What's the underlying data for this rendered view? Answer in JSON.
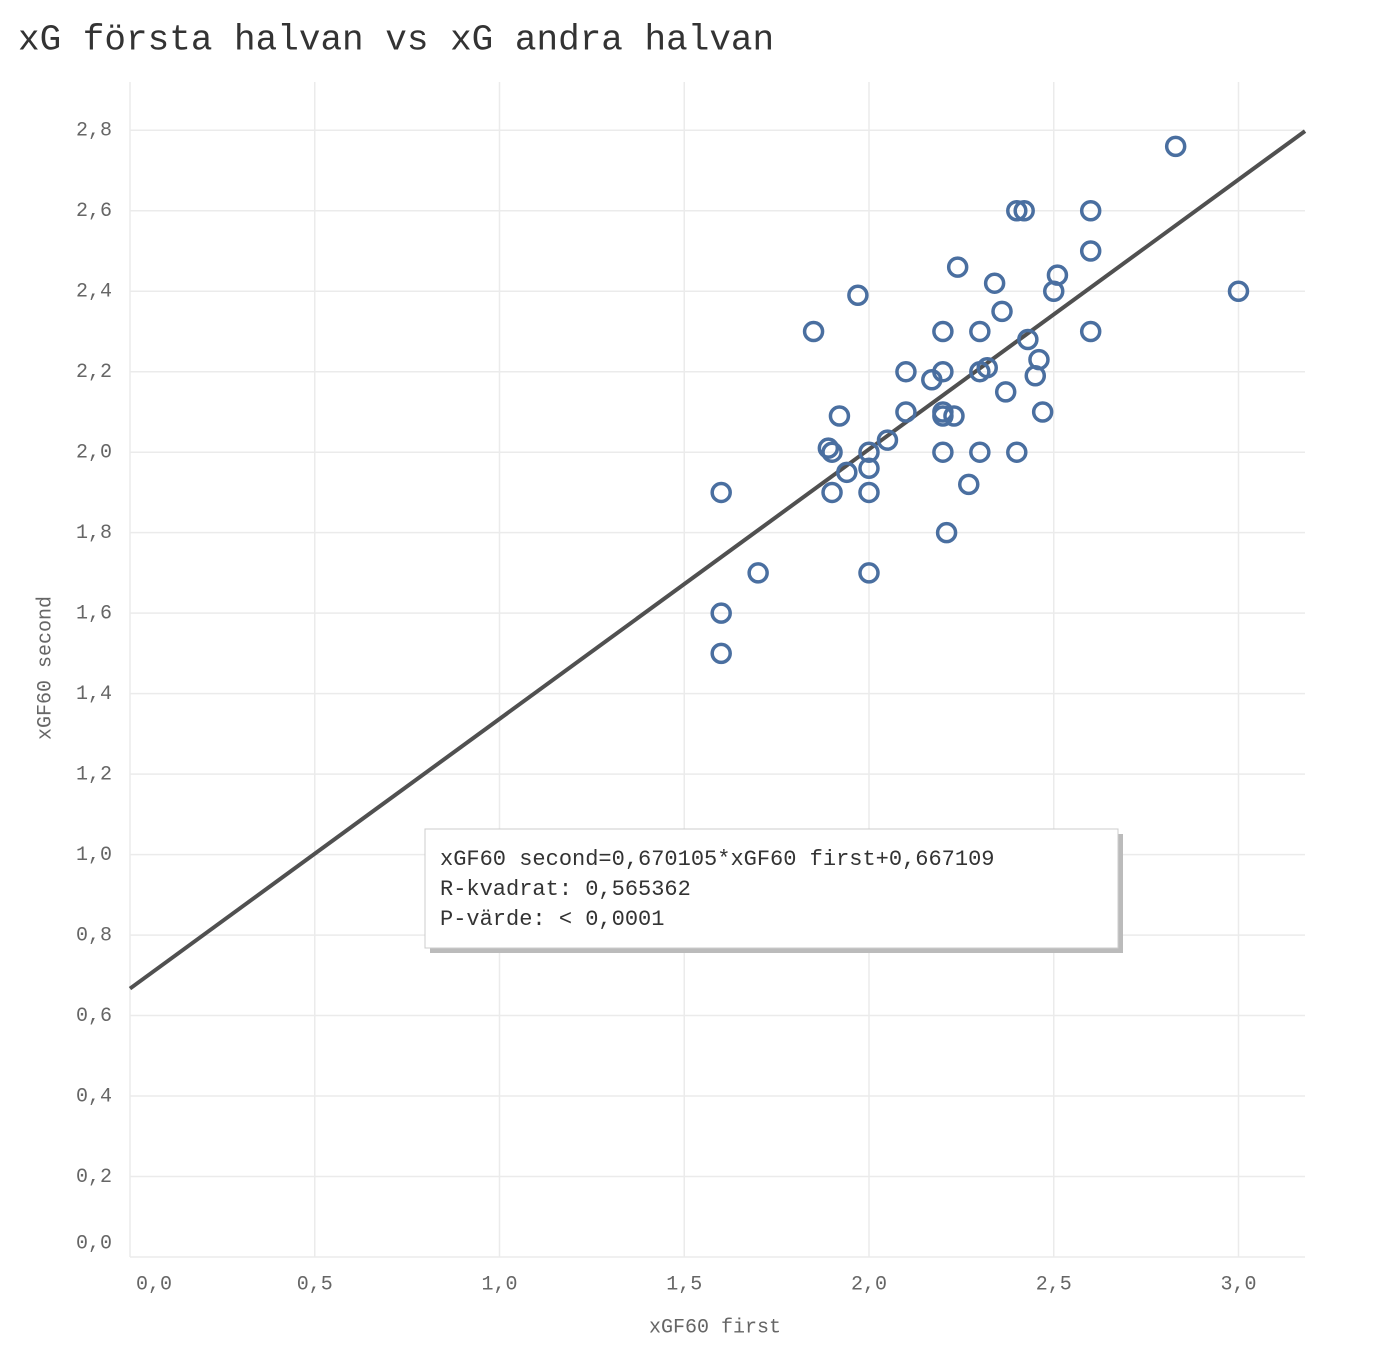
{
  "chart_data": {
    "type": "scatter",
    "title": "xG första halvan vs xG andra halvan",
    "x_label": "xGF60 first",
    "y_label": "xGF60 second",
    "color": "#4a6fa0",
    "x": [
      2.83,
      2.4,
      2.42,
      2.6,
      2.6,
      2.24,
      2.51,
      2.34,
      1.97,
      2.5,
      3.0,
      2.36,
      1.85,
      2.2,
      2.3,
      2.6,
      2.43,
      2.46,
      2.1,
      2.2,
      2.32,
      2.3,
      2.17,
      2.45,
      2.37,
      1.92,
      2.1,
      2.2,
      2.2,
      2.23,
      2.47,
      2.05,
      1.89,
      1.9,
      2.0,
      2.2,
      2.3,
      2.4,
      2.0,
      1.94,
      2.27,
      1.6,
      1.9,
      2.0,
      2.21,
      1.7,
      2.0,
      1.6,
      1.6
    ],
    "values": [
      2.76,
      2.6,
      2.6,
      2.6,
      2.5,
      2.46,
      2.44,
      2.42,
      2.39,
      2.4,
      2.4,
      2.35,
      2.3,
      2.3,
      2.3,
      2.3,
      2.28,
      2.23,
      2.2,
      2.2,
      2.21,
      2.2,
      2.18,
      2.19,
      2.15,
      2.09,
      2.1,
      2.1,
      2.09,
      2.09,
      2.1,
      2.03,
      2.01,
      2.0,
      2.0,
      2.0,
      2.0,
      2.0,
      1.96,
      1.95,
      1.92,
      1.9,
      1.9,
      1.9,
      1.8,
      1.7,
      1.7,
      1.6,
      1.5
    ],
    "trendline": {
      "slope": 0.670105,
      "intercept": 0.667109,
      "color": "#505050"
    },
    "annotation": [
      "xGF60 second=0,670105*xGF60 first+0,667109",
      "R-kvadrat: 0,565362",
      "P-värde: < 0,0001"
    ],
    "xlim": [
      0,
      3.18
    ],
    "ylim": [
      0,
      2.92
    ],
    "xticks": [
      {
        "value": 0,
        "label": "0,0"
      },
      {
        "value": 0.5,
        "label": "0,5"
      },
      {
        "value": 1,
        "label": "1,0"
      },
      {
        "value": 1.5,
        "label": "1,5"
      },
      {
        "value": 2,
        "label": "2,0"
      },
      {
        "value": 2.5,
        "label": "2,5"
      },
      {
        "value": 3,
        "label": "3,0"
      }
    ],
    "yticks": [
      {
        "value": 0,
        "label": "0,0"
      },
      {
        "value": 0.2,
        "label": "0,2"
      },
      {
        "value": 0.4,
        "label": "0,4"
      },
      {
        "value": 0.6,
        "label": "0,6"
      },
      {
        "value": 0.8,
        "label": "0,8"
      },
      {
        "value": 1,
        "label": "1,0"
      },
      {
        "value": 1.2,
        "label": "1,2"
      },
      {
        "value": 1.4,
        "label": "1,4"
      },
      {
        "value": 1.6,
        "label": "1,6"
      },
      {
        "value": 1.8,
        "label": "1,8"
      },
      {
        "value": 2,
        "label": "2,0"
      },
      {
        "value": 2.2,
        "label": "2,2"
      },
      {
        "value": 2.4,
        "label": "2,4"
      },
      {
        "value": 2.6,
        "label": "2,6"
      },
      {
        "value": 2.8,
        "label": "2,8"
      }
    ],
    "grid": true
  }
}
